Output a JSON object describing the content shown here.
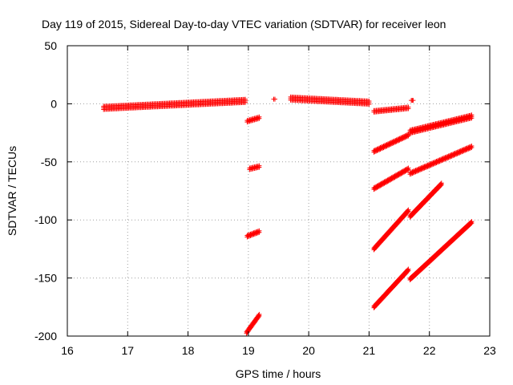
{
  "chart_data": {
    "type": "scatter",
    "title": "Day 119 of 2015, Sidereal Day-to-day VTEC variation (SDTVAR) for receiver leon",
    "xlabel": "GPS time / hours",
    "ylabel": "SDTVAR / TECUs",
    "xlim": [
      16,
      23
    ],
    "ylim": [
      -200,
      50
    ],
    "xticks": [
      16,
      17,
      18,
      19,
      20,
      21,
      22,
      23
    ],
    "yticks": [
      -200,
      -150,
      -100,
      -50,
      0,
      50
    ],
    "grid": true,
    "marker": "+",
    "color": "#ff0000",
    "segments": [
      {
        "x": [
          16.6,
          18.95
        ],
        "y": [
          -3.5,
          2.5
        ],
        "thickness": 6
      },
      {
        "x": [
          18.98,
          19.18
        ],
        "y": [
          -15,
          -12
        ],
        "thickness": 3
      },
      {
        "x": [
          19.02,
          19.18
        ],
        "y": [
          -56,
          -54
        ],
        "thickness": 3
      },
      {
        "x": [
          18.98,
          19.18
        ],
        "y": [
          -114,
          -110
        ],
        "thickness": 3
      },
      {
        "x": [
          18.97,
          19.18
        ],
        "y": [
          -197,
          -182
        ],
        "thickness": 3
      },
      {
        "x": [
          19.42,
          19.44
        ],
        "y": [
          4,
          4
        ],
        "thickness": 1
      },
      {
        "x": [
          19.7,
          21.0
        ],
        "y": [
          4.5,
          1
        ],
        "thickness": 6
      },
      {
        "x": [
          21.08,
          21.65
        ],
        "y": [
          -6.5,
          -3.5
        ],
        "thickness": 4
      },
      {
        "x": [
          21.7,
          21.73
        ],
        "y": [
          3,
          3
        ],
        "thickness": 1
      },
      {
        "x": [
          21.08,
          21.65
        ],
        "y": [
          -41,
          -27
        ],
        "thickness": 4
      },
      {
        "x": [
          21.68,
          22.7
        ],
        "y": [
          -24,
          -11
        ],
        "thickness": 6
      },
      {
        "x": [
          21.08,
          21.65
        ],
        "y": [
          -73,
          -56
        ],
        "thickness": 4
      },
      {
        "x": [
          21.68,
          22.7
        ],
        "y": [
          -60,
          -37
        ],
        "thickness": 4
      },
      {
        "x": [
          21.08,
          21.65
        ],
        "y": [
          -125,
          -92
        ],
        "thickness": 4
      },
      {
        "x": [
          21.68,
          22.2
        ],
        "y": [
          -97,
          -69
        ],
        "thickness": 4
      },
      {
        "x": [
          21.08,
          21.65
        ],
        "y": [
          -175,
          -143
        ],
        "thickness": 4
      },
      {
        "x": [
          21.68,
          22.7
        ],
        "y": [
          -151,
          -102
        ],
        "thickness": 4
      }
    ]
  }
}
